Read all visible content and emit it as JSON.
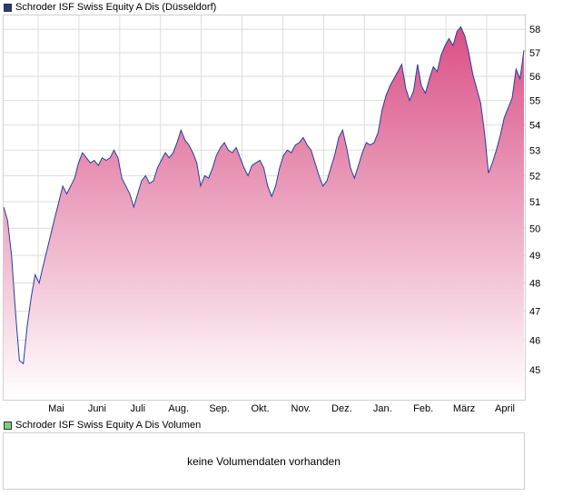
{
  "price_legend": {
    "label": "Schroder ISF Swiss Equity A Dis (Düsseldorf)",
    "color": "#1f3c8c"
  },
  "volume_legend": {
    "label": "Schroder ISF Swiss Equity A Dis Volumen",
    "color": "#7ccf7c"
  },
  "volume_panel": {
    "message": "keine Volumendaten vorhanden"
  },
  "colors": {
    "line": "#2a3d9a",
    "fill_top": "#d94f85",
    "fill_bottom": "#ffffff",
    "grid": "#dddddd",
    "frame": "#cfcfcf"
  },
  "chart_data": {
    "type": "area",
    "title": "Schroder ISF Swiss Equity A Dis (Düsseldorf)",
    "xlabel": "",
    "ylabel": "",
    "x_ticks": [
      "Mai",
      "Juni",
      "Juli",
      "Aug.",
      "Sep.",
      "Okt.",
      "Nov.",
      "Dez.",
      "Jan.",
      "Feb.",
      "März",
      "April"
    ],
    "y_ticks": [
      45,
      46,
      47,
      48,
      49,
      50,
      51,
      52,
      53,
      54,
      55,
      56,
      57,
      58
    ],
    "ylim": [
      44.0,
      58.6
    ],
    "y_scale": "log",
    "grid": true,
    "legend": "top-left",
    "series": [
      {
        "name": "Schroder ISF Swiss Equity A Dis (Düsseldorf)",
        "values": [
          50.8,
          50.3,
          49.0,
          47.0,
          45.3,
          45.2,
          46.5,
          47.5,
          48.3,
          48.0,
          48.6,
          49.2,
          49.8,
          50.4,
          51.0,
          51.6,
          51.3,
          51.6,
          51.9,
          52.5,
          52.9,
          52.7,
          52.5,
          52.6,
          52.4,
          52.7,
          52.6,
          52.7,
          53.0,
          52.7,
          51.9,
          51.6,
          51.3,
          50.8,
          51.3,
          51.8,
          52.0,
          51.7,
          51.8,
          52.3,
          52.6,
          52.9,
          52.7,
          52.9,
          53.3,
          53.8,
          53.4,
          53.2,
          52.9,
          52.5,
          51.6,
          52.0,
          51.9,
          52.3,
          52.8,
          53.1,
          53.3,
          53.0,
          52.9,
          53.1,
          52.7,
          52.3,
          52.0,
          52.4,
          52.5,
          52.6,
          52.3,
          51.6,
          51.2,
          51.6,
          52.3,
          52.8,
          53.0,
          52.9,
          53.2,
          53.3,
          53.5,
          53.2,
          53.0,
          52.5,
          52.0,
          51.6,
          51.8,
          52.3,
          52.8,
          53.5,
          53.8,
          53.1,
          52.3,
          51.9,
          52.4,
          52.9,
          53.3,
          53.2,
          53.3,
          53.7,
          54.6,
          55.2,
          55.6,
          55.9,
          56.2,
          56.5,
          55.5,
          55.0,
          55.4,
          56.5,
          55.6,
          55.3,
          55.9,
          56.4,
          56.2,
          56.9,
          57.3,
          57.6,
          57.3,
          57.9,
          58.1,
          57.7,
          57.0,
          56.1,
          55.5,
          54.9,
          53.7,
          52.1,
          52.5,
          53.0,
          53.6,
          54.3,
          54.7,
          55.1,
          56.3,
          55.9,
          57.1
        ]
      }
    ]
  }
}
